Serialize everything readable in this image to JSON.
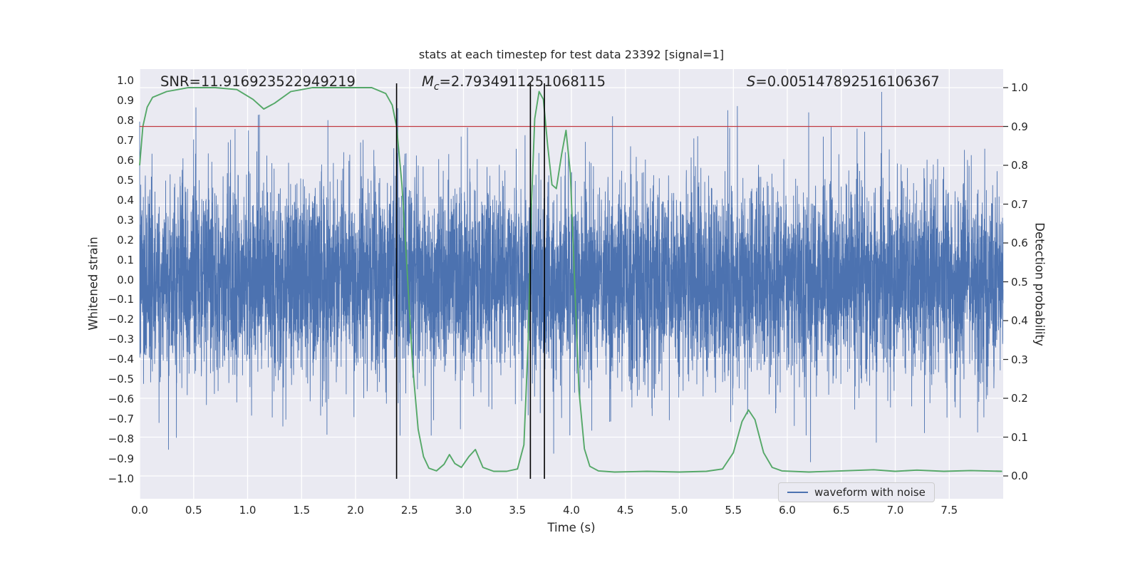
{
  "title": "stats at each timestep for test data 23392 [signal=1]",
  "annotations": {
    "snr": "SNR=11.916923522949219",
    "mc_m": "M",
    "mc_sub": "c",
    "mc_rest": "=2.7934911251068115",
    "s_s": "S",
    "s_rest": "=0.005147892516106367"
  },
  "axes": {
    "x_label": "Time (s)",
    "y_left_label": "Whitened strain",
    "y_right_label": "Detection probability",
    "x_tick_labels": [
      "0.0",
      "0.5",
      "1.0",
      "1.5",
      "2.0",
      "2.5",
      "3.0",
      "3.5",
      "4.0",
      "4.5",
      "5.0",
      "5.5",
      "6.0",
      "6.5",
      "7.0",
      "7.5"
    ],
    "y_left_tick_labels": [
      "1.0",
      "0.9",
      "0.8",
      "0.7",
      "0.6",
      "0.5",
      "0.4",
      "0.3",
      "0.2",
      "0.1",
      "0.0",
      "−0.1",
      "−0.2",
      "−0.3",
      "−0.4",
      "−0.5",
      "−0.6",
      "−0.7",
      "−0.8",
      "−0.9",
      "−1.0"
    ],
    "y_right_tick_labels": [
      "1.0",
      "0.9",
      "0.8",
      "0.7",
      "0.6",
      "0.5",
      "0.4",
      "0.3",
      "0.2",
      "0.1",
      "0.0"
    ]
  },
  "legend": {
    "label": "waveform with noise"
  },
  "style": {
    "plot_bg": "#eaeaf2",
    "grid_color": "#ffffff",
    "waveform_color": "#4c72b0",
    "probability_color": "#55a868",
    "threshold_color": "#c03a42",
    "marker_color": "#000000",
    "text_color": "#262626"
  },
  "chart_data": {
    "type": "line",
    "title": "stats at each timestep for test data 23392 [signal=1]",
    "xlabel": "Time (s)",
    "ylabel_left": "Whitened strain",
    "ylabel_right": "Detection probability",
    "xlim": [
      0.0,
      8.0
    ],
    "ylim_left": [
      -1.05,
      1.05
    ],
    "ylim_right": [
      -0.05,
      1.05
    ],
    "x_ticks": [
      0.0,
      0.5,
      1.0,
      1.5,
      2.0,
      2.5,
      3.0,
      3.5,
      4.0,
      4.5,
      5.0,
      5.5,
      6.0,
      6.5,
      7.0,
      7.5
    ],
    "y_left_ticks": [
      1.0,
      0.9,
      0.8,
      0.7,
      0.6,
      0.5,
      0.4,
      0.3,
      0.2,
      0.1,
      0.0,
      -0.1,
      -0.2,
      -0.3,
      -0.4,
      -0.5,
      -0.6,
      -0.7,
      -0.8,
      -0.9,
      -1.0
    ],
    "y_right_ticks": [
      1.0,
      0.9,
      0.8,
      0.7,
      0.6,
      0.5,
      0.4,
      0.3,
      0.2,
      0.1,
      0.0
    ],
    "grid": true,
    "legend_position": "lower right",
    "annotations": [
      {
        "text": "SNR=11.916923522949219",
        "x": 0.2,
        "y": 0.97
      },
      {
        "text": "Mc=2.7934911251068115",
        "x": 2.6,
        "y": 0.97
      },
      {
        "text": "S=0.005147892516106367",
        "x": 5.6,
        "y": 0.97
      }
    ],
    "series": [
      {
        "name": "waveform with noise",
        "axis": "left",
        "color": "#4c72b0",
        "style": "noise",
        "noise": {
          "n": 7000,
          "sigma": 0.245,
          "tail_fraction": 0.02,
          "tail_sigma": 0.34,
          "clip": 0.98,
          "seed": 7,
          "x_start": 0.0,
          "x_end": 7.9995
        }
      },
      {
        "name": "detection probability",
        "axis": "right",
        "color": "#55a868",
        "style": "line",
        "points": [
          [
            0.0,
            0.8
          ],
          [
            0.03,
            0.9
          ],
          [
            0.07,
            0.95
          ],
          [
            0.12,
            0.975
          ],
          [
            0.25,
            0.99
          ],
          [
            0.45,
            1.0
          ],
          [
            0.7,
            1.0
          ],
          [
            0.9,
            0.995
          ],
          [
            1.05,
            0.97
          ],
          [
            1.15,
            0.945
          ],
          [
            1.25,
            0.96
          ],
          [
            1.4,
            0.99
          ],
          [
            1.6,
            1.0
          ],
          [
            1.9,
            1.0
          ],
          [
            2.15,
            1.0
          ],
          [
            2.28,
            0.985
          ],
          [
            2.34,
            0.955
          ],
          [
            2.38,
            0.9
          ],
          [
            2.43,
            0.75
          ],
          [
            2.48,
            0.52
          ],
          [
            2.53,
            0.28
          ],
          [
            2.58,
            0.12
          ],
          [
            2.63,
            0.05
          ],
          [
            2.68,
            0.02
          ],
          [
            2.75,
            0.013
          ],
          [
            2.82,
            0.03
          ],
          [
            2.87,
            0.055
          ],
          [
            2.92,
            0.032
          ],
          [
            2.98,
            0.022
          ],
          [
            3.05,
            0.05
          ],
          [
            3.11,
            0.068
          ],
          [
            3.18,
            0.022
          ],
          [
            3.28,
            0.012
          ],
          [
            3.4,
            0.012
          ],
          [
            3.5,
            0.018
          ],
          [
            3.56,
            0.08
          ],
          [
            3.6,
            0.35
          ],
          [
            3.63,
            0.7
          ],
          [
            3.66,
            0.92
          ],
          [
            3.7,
            0.99
          ],
          [
            3.74,
            0.97
          ],
          [
            3.78,
            0.85
          ],
          [
            3.82,
            0.75
          ],
          [
            3.86,
            0.74
          ],
          [
            3.91,
            0.83
          ],
          [
            3.95,
            0.89
          ],
          [
            3.99,
            0.78
          ],
          [
            4.03,
            0.5
          ],
          [
            4.07,
            0.22
          ],
          [
            4.12,
            0.07
          ],
          [
            4.17,
            0.025
          ],
          [
            4.25,
            0.013
          ],
          [
            4.4,
            0.01
          ],
          [
            4.7,
            0.012
          ],
          [
            5.0,
            0.01
          ],
          [
            5.25,
            0.012
          ],
          [
            5.4,
            0.018
          ],
          [
            5.5,
            0.06
          ],
          [
            5.58,
            0.14
          ],
          [
            5.64,
            0.17
          ],
          [
            5.7,
            0.145
          ],
          [
            5.78,
            0.06
          ],
          [
            5.86,
            0.022
          ],
          [
            5.95,
            0.013
          ],
          [
            6.2,
            0.01
          ],
          [
            6.5,
            0.013
          ],
          [
            6.8,
            0.016
          ],
          [
            7.0,
            0.012
          ],
          [
            7.2,
            0.015
          ],
          [
            7.45,
            0.012
          ],
          [
            7.7,
            0.014
          ],
          [
            7.99,
            0.012
          ]
        ]
      },
      {
        "name": "detection threshold",
        "axis": "right",
        "color": "#c03a42",
        "style": "hline",
        "y": 0.9
      },
      {
        "name": "event markers",
        "axis": "x",
        "color": "#000000",
        "style": "vlines",
        "x": [
          2.38,
          3.62,
          3.75
        ]
      }
    ]
  }
}
